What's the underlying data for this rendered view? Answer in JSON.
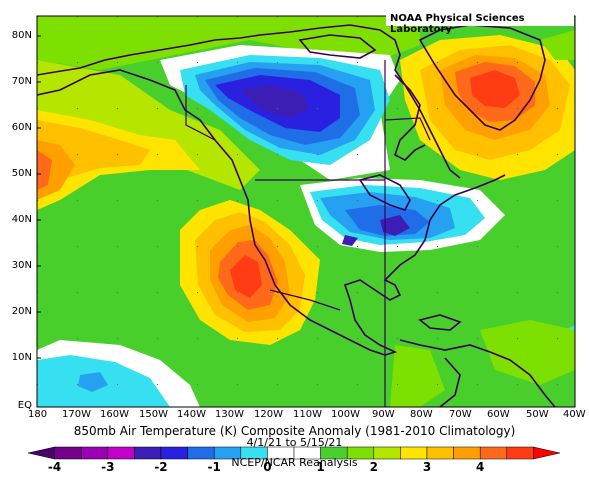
{
  "header": {
    "lab_name": "NOAA Physical Sciences Laboratory"
  },
  "map": {
    "lat_labels": [
      "80N",
      "70N",
      "60N",
      "50N",
      "40N",
      "30N",
      "20N",
      "10N",
      "EQ"
    ],
    "lon_labels": [
      "180",
      "170W",
      "160W",
      "150W",
      "140W",
      "130W",
      "120W",
      "110W",
      "100W",
      "90W",
      "80W",
      "70W",
      "60W",
      "50W",
      "40W"
    ],
    "anomaly_areas": [
      {
        "name": "cold-anomaly-canada",
        "value": -3,
        "color": "#2a21e0"
      },
      {
        "name": "cold-anomaly-central-us",
        "value": -2,
        "color": "#1f6ee8"
      },
      {
        "name": "warm-anomaly-greenland",
        "value": 3,
        "color": "#ff6a1a"
      },
      {
        "name": "warm-anomaly-southwest-us",
        "value": 3,
        "color": "#ff5a14"
      },
      {
        "name": "warm-anomaly-north-pacific",
        "value": 2,
        "color": "#ffc000"
      },
      {
        "name": "cold-anomaly-tropical-pacific",
        "value": -1,
        "color": "#36e0f0"
      }
    ]
  },
  "caption": {
    "line1": "850mb Air Temperature (K) Composite Anomaly (1981-2010 Climatology)",
    "line2": "4/1/21 to 5/15/21",
    "line3": "NCEP/NCAR Reanalysis"
  },
  "colorbar": {
    "labels": [
      "-4",
      "-3",
      "-2",
      "-1",
      "0",
      "1",
      "2",
      "3",
      "4"
    ],
    "colors": [
      "#4b006b",
      "#75008c",
      "#9b00b4",
      "#c100c8",
      "#3c1eb4",
      "#2a21e0",
      "#1f6ee8",
      "#26a0f0",
      "#36e0f0",
      "#ffffff",
      "#ffffff",
      "#4ad02c",
      "#7ee000",
      "#b4e600",
      "#ffe400",
      "#ffc000",
      "#ffa000",
      "#ff6a1a",
      "#ff3c14",
      "#ff0000"
    ]
  }
}
